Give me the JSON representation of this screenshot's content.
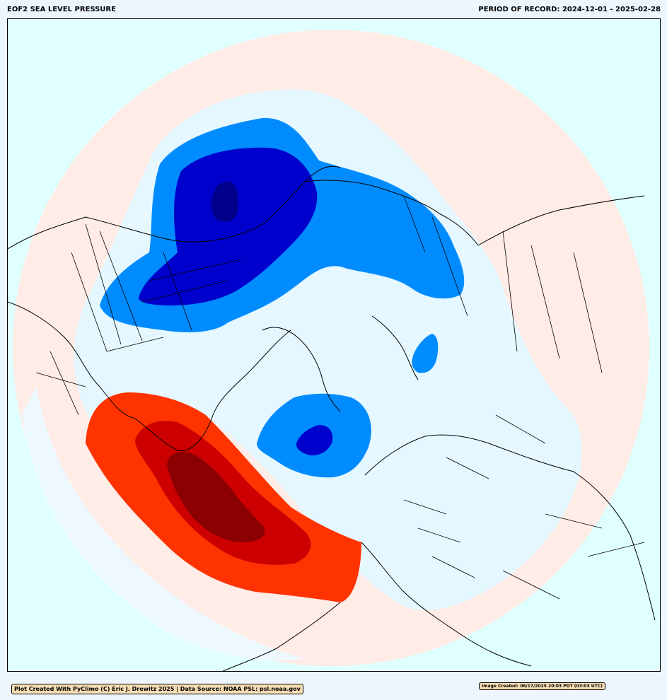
{
  "header": {
    "title": "EOF2 SEA LEVEL PRESSURE",
    "period_label": "PERIOD OF RECORD:",
    "period_start": "2024-12-01",
    "period_end": "2025-02-28"
  },
  "footer": {
    "credit": "Plot Created With PyClimo (C) Eric J. Drewitz 2025 | Data Source: NOAA PSL: psl.noaa.gov",
    "image_created": "Image Created: 06/17/2025 20:03 PDT (03:03 UTC)"
  },
  "map": {
    "projection": "north-polar-stereographic",
    "background_color": "#e0ffff",
    "palette": {
      "positive_weak": "#ffece6",
      "positive_1": "#ff3300",
      "positive_2": "#cc0000",
      "positive_3": "#8b0000",
      "neutral_cool": "#e6f8ff",
      "negative_1": "#008cff",
      "negative_2": "#0000cd",
      "negative_3": "#00008b"
    },
    "features": [
      "positive-anomaly-north-atlantic",
      "negative-anomaly-north-pacific-alaska",
      "negative-anomaly-barents-sea",
      "negative-anomaly-west-siberia"
    ]
  }
}
